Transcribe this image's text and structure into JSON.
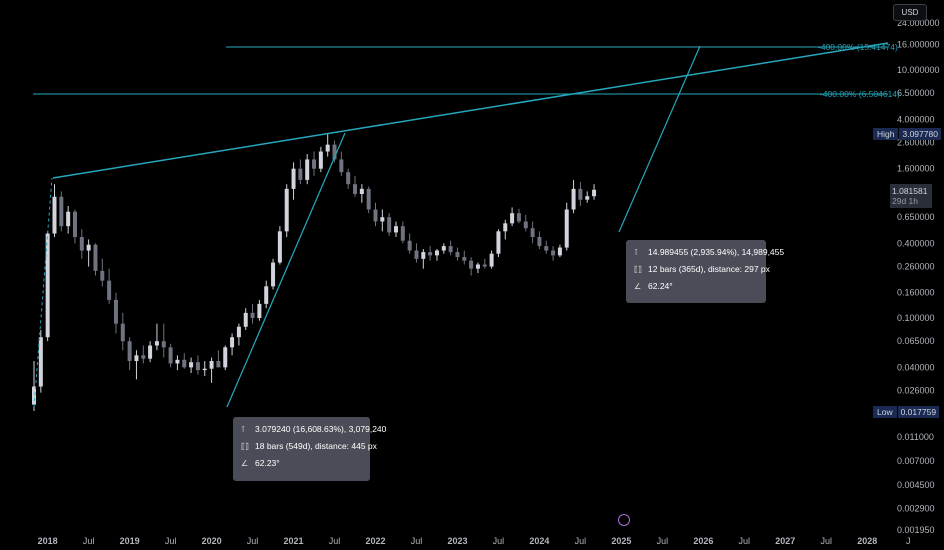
{
  "currency": "USD",
  "price_tags": {
    "high_label": "High",
    "high_value": "3.097780",
    "low_label": "Low",
    "low_value": "0.017759",
    "last_value": "1.081581",
    "last_countdown": "29d 1h"
  },
  "level_labels": [
    "-400.00% (15.41474)",
    "-400.00% (6.504614)"
  ],
  "measure_boxes": [
    {
      "price_line": "3.079240 (16,608.63%), 3,079,240",
      "bars_line": "18 bars (549d), distance: 445 px",
      "angle_line": "62.23°"
    },
    {
      "price_line": "14.989455 (2,935.94%), 14,989,455",
      "bars_line": "12 bars (365d), distance: 297 px",
      "angle_line": "62.24°"
    }
  ],
  "colors": {
    "background": "#000000",
    "candle": "#d1d4dc",
    "drawing": "#26a7bd",
    "tag_bg": "#1a2a52"
  },
  "icons": [
    "price-range-icon",
    "date-range-icon",
    "angle-icon",
    "go-to-realtime-icon"
  ],
  "chart_data": {
    "type": "candlestick",
    "interval": "monthly",
    "y_scale": "log",
    "y_ticks": [
      "24.000000",
      "16.000000",
      "10.000000",
      "6.500000",
      "4.000000",
      "2.600000",
      "1.600000",
      "0.650000",
      "0.400000",
      "0.260000",
      "0.160000",
      "0.100000",
      "0.065000",
      "0.040000",
      "0.026000",
      "0.011000",
      "0.007000",
      "0.004500",
      "0.002900",
      "0.001950"
    ],
    "x_ticks": [
      {
        "label": "2018",
        "major": true
      },
      {
        "label": "Jul",
        "major": false
      },
      {
        "label": "2019",
        "major": true
      },
      {
        "label": "Jul",
        "major": false
      },
      {
        "label": "2020",
        "major": true
      },
      {
        "label": "Jul",
        "major": false
      },
      {
        "label": "2021",
        "major": true
      },
      {
        "label": "Jul",
        "major": false
      },
      {
        "label": "2022",
        "major": true
      },
      {
        "label": "Jul",
        "major": false
      },
      {
        "label": "2023",
        "major": true
      },
      {
        "label": "Jul",
        "major": false
      },
      {
        "label": "2024",
        "major": true
      },
      {
        "label": "Jul",
        "major": false
      },
      {
        "label": "2025",
        "major": true
      },
      {
        "label": "Jul",
        "major": false
      },
      {
        "label": "2026",
        "major": true
      },
      {
        "label": "Jul",
        "major": false
      },
      {
        "label": "2027",
        "major": true
      },
      {
        "label": "Jul",
        "major": false
      },
      {
        "label": "2028",
        "major": true
      },
      {
        "label": "J",
        "major": false
      }
    ],
    "start_month": "2017-11",
    "ohlc": [
      [
        0.02,
        0.045,
        0.0178,
        0.028
      ],
      [
        0.028,
        0.08,
        0.025,
        0.07
      ],
      [
        0.07,
        0.5,
        0.065,
        0.48
      ],
      [
        0.48,
        1.2,
        0.45,
        0.95
      ],
      [
        0.95,
        1.05,
        0.5,
        0.55
      ],
      [
        0.55,
        0.8,
        0.48,
        0.72
      ],
      [
        0.72,
        0.75,
        0.4,
        0.45
      ],
      [
        0.45,
        0.52,
        0.3,
        0.35
      ],
      [
        0.35,
        0.43,
        0.26,
        0.39
      ],
      [
        0.39,
        0.4,
        0.22,
        0.24
      ],
      [
        0.24,
        0.3,
        0.18,
        0.2
      ],
      [
        0.2,
        0.25,
        0.13,
        0.14
      ],
      [
        0.14,
        0.16,
        0.075,
        0.09
      ],
      [
        0.09,
        0.11,
        0.055,
        0.065
      ],
      [
        0.065,
        0.07,
        0.038,
        0.045
      ],
      [
        0.045,
        0.055,
        0.032,
        0.05
      ],
      [
        0.05,
        0.06,
        0.043,
        0.047
      ],
      [
        0.047,
        0.065,
        0.044,
        0.06
      ],
      [
        0.06,
        0.09,
        0.055,
        0.065
      ],
      [
        0.065,
        0.09,
        0.048,
        0.058
      ],
      [
        0.058,
        0.062,
        0.04,
        0.043
      ],
      [
        0.043,
        0.05,
        0.038,
        0.046
      ],
      [
        0.046,
        0.052,
        0.039,
        0.04
      ],
      [
        0.04,
        0.048,
        0.036,
        0.044
      ],
      [
        0.044,
        0.05,
        0.035,
        0.038
      ],
      [
        0.038,
        0.045,
        0.034,
        0.039
      ],
      [
        0.039,
        0.048,
        0.03,
        0.045
      ],
      [
        0.045,
        0.055,
        0.04,
        0.04
      ],
      [
        0.04,
        0.06,
        0.038,
        0.058
      ],
      [
        0.058,
        0.075,
        0.05,
        0.07
      ],
      [
        0.07,
        0.09,
        0.06,
        0.085
      ],
      [
        0.085,
        0.12,
        0.08,
        0.11
      ],
      [
        0.11,
        0.13,
        0.09,
        0.1
      ],
      [
        0.1,
        0.14,
        0.095,
        0.13
      ],
      [
        0.13,
        0.2,
        0.12,
        0.18
      ],
      [
        0.18,
        0.3,
        0.17,
        0.28
      ],
      [
        0.28,
        0.55,
        0.27,
        0.5
      ],
      [
        0.5,
        1.2,
        0.45,
        1.1
      ],
      [
        1.1,
        1.8,
        0.9,
        1.6
      ],
      [
        1.6,
        1.9,
        1.2,
        1.3
      ],
      [
        1.3,
        2.1,
        1.2,
        1.9
      ],
      [
        1.9,
        2.2,
        1.4,
        1.6
      ],
      [
        1.6,
        2.4,
        1.5,
        2.2
      ],
      [
        2.2,
        3.0978,
        2.0,
        2.5
      ],
      [
        2.5,
        2.7,
        1.8,
        1.9
      ],
      [
        1.9,
        2.2,
        1.4,
        1.5
      ],
      [
        1.5,
        1.6,
        1.1,
        1.2
      ],
      [
        1.2,
        1.4,
        0.95,
        1.0
      ],
      [
        1.0,
        1.2,
        0.85,
        1.1
      ],
      [
        1.1,
        1.15,
        0.7,
        0.75
      ],
      [
        0.75,
        0.85,
        0.55,
        0.6
      ],
      [
        0.6,
        0.75,
        0.5,
        0.65
      ],
      [
        0.65,
        0.7,
        0.46,
        0.49
      ],
      [
        0.49,
        0.6,
        0.45,
        0.55
      ],
      [
        0.55,
        0.6,
        0.4,
        0.42
      ],
      [
        0.42,
        0.48,
        0.33,
        0.35
      ],
      [
        0.35,
        0.4,
        0.28,
        0.3
      ],
      [
        0.3,
        0.36,
        0.25,
        0.34
      ],
      [
        0.34,
        0.38,
        0.29,
        0.32
      ],
      [
        0.32,
        0.36,
        0.29,
        0.35
      ],
      [
        0.35,
        0.4,
        0.33,
        0.38
      ],
      [
        0.38,
        0.42,
        0.32,
        0.34
      ],
      [
        0.34,
        0.37,
        0.29,
        0.31
      ],
      [
        0.31,
        0.35,
        0.27,
        0.29
      ],
      [
        0.29,
        0.31,
        0.22,
        0.25
      ],
      [
        0.25,
        0.28,
        0.23,
        0.27
      ],
      [
        0.27,
        0.3,
        0.25,
        0.26
      ],
      [
        0.26,
        0.35,
        0.25,
        0.33
      ],
      [
        0.33,
        0.52,
        0.31,
        0.5
      ],
      [
        0.5,
        0.62,
        0.43,
        0.58
      ],
      [
        0.58,
        0.78,
        0.55,
        0.7
      ],
      [
        0.7,
        0.76,
        0.58,
        0.6
      ],
      [
        0.6,
        0.68,
        0.5,
        0.53
      ],
      [
        0.53,
        0.6,
        0.4,
        0.45
      ],
      [
        0.45,
        0.5,
        0.36,
        0.38
      ],
      [
        0.38,
        0.42,
        0.33,
        0.35
      ],
      [
        0.35,
        0.38,
        0.29,
        0.32
      ],
      [
        0.32,
        0.39,
        0.31,
        0.37
      ],
      [
        0.37,
        0.85,
        0.35,
        0.75
      ],
      [
        0.75,
        1.3,
        0.7,
        1.1
      ],
      [
        1.1,
        1.25,
        0.8,
        0.9
      ],
      [
        0.9,
        1.05,
        0.85,
        0.96
      ],
      [
        0.96,
        1.2,
        0.9,
        1.0816
      ]
    ]
  }
}
